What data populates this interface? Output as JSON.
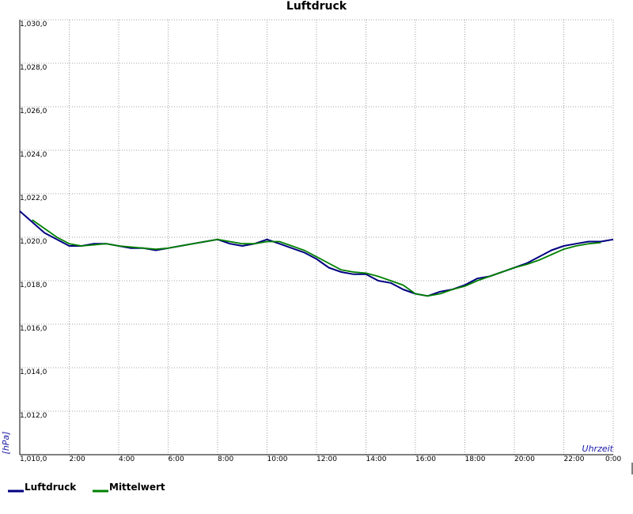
{
  "chart_data": {
    "type": "line",
    "title": "Luftdruck",
    "xlabel": "Uhrzeit",
    "ylabel": "[hPa]",
    "ylim": [
      1010.0,
      1030.0
    ],
    "xlim": [
      0,
      24
    ],
    "grid": true,
    "legend_position": "bottom-left",
    "x_tick_labels": [
      "2:00",
      "4:00",
      "6:00",
      "8:00",
      "10:00",
      "12:00",
      "14:00",
      "16:00",
      "18:00",
      "20:00",
      "22:00",
      "0:00"
    ],
    "y_tick_labels": [
      "1,010,0",
      "1,012,0",
      "1,014,0",
      "1,016,0",
      "1,018,0",
      "1,020,0",
      "1,022,0",
      "1,024,0",
      "1,026,0",
      "1,028,0",
      "1,030,0"
    ],
    "series": [
      {
        "name": "Luftdruck",
        "color": "#000080",
        "x": [
          0,
          0.5,
          1.0,
          1.5,
          2.0,
          2.5,
          3.0,
          3.5,
          4.0,
          4.5,
          5.0,
          5.5,
          6.0,
          6.5,
          7.0,
          7.5,
          8.0,
          8.5,
          9.0,
          9.5,
          10.0,
          10.5,
          11.0,
          11.5,
          12.0,
          12.5,
          13.0,
          13.5,
          14.0,
          14.5,
          15.0,
          15.5,
          16.0,
          16.5,
          17.0,
          17.5,
          18.0,
          18.5,
          19.0,
          19.5,
          20.0,
          20.5,
          21.0,
          21.5,
          22.0,
          22.5,
          23.0,
          23.5,
          24.0
        ],
        "y": [
          1021.2,
          1020.7,
          1020.2,
          1019.9,
          1019.6,
          1019.6,
          1019.7,
          1019.7,
          1019.6,
          1019.5,
          1019.5,
          1019.4,
          1019.5,
          1019.6,
          1019.7,
          1019.8,
          1019.9,
          1019.7,
          1019.6,
          1019.7,
          1019.9,
          1019.7,
          1019.5,
          1019.3,
          1019.0,
          1018.6,
          1018.4,
          1018.3,
          1018.3,
          1018.0,
          1017.9,
          1017.6,
          1017.4,
          1017.3,
          1017.5,
          1017.6,
          1017.8,
          1018.1,
          1018.2,
          1018.4,
          1018.6,
          1018.8,
          1019.1,
          1019.4,
          1019.6,
          1019.7,
          1019.8,
          1019.8,
          1019.9
        ]
      },
      {
        "name": "Mittelwert",
        "color": "#008000",
        "x": [
          0.5,
          1.0,
          1.5,
          2.0,
          2.5,
          3.0,
          3.5,
          4.0,
          4.5,
          5.0,
          5.5,
          6.0,
          6.5,
          7.0,
          7.5,
          8.0,
          8.5,
          9.0,
          9.5,
          10.0,
          10.5,
          11.0,
          11.5,
          12.0,
          12.5,
          13.0,
          13.5,
          14.0,
          14.5,
          15.0,
          15.5,
          16.0,
          16.5,
          17.0,
          17.5,
          18.0,
          18.5,
          19.0,
          19.5,
          20.0,
          20.5,
          21.0,
          21.5,
          22.0,
          22.5,
          23.0,
          23.5
        ],
        "y": [
          1020.8,
          1020.4,
          1020.0,
          1019.7,
          1019.6,
          1019.65,
          1019.7,
          1019.6,
          1019.55,
          1019.5,
          1019.45,
          1019.5,
          1019.6,
          1019.7,
          1019.8,
          1019.9,
          1019.8,
          1019.7,
          1019.7,
          1019.8,
          1019.8,
          1019.6,
          1019.4,
          1019.1,
          1018.8,
          1018.5,
          1018.4,
          1018.35,
          1018.2,
          1018.0,
          1017.8,
          1017.4,
          1017.3,
          1017.4,
          1017.6,
          1017.75,
          1018.0,
          1018.2,
          1018.4,
          1018.6,
          1018.75,
          1018.95,
          1019.2,
          1019.45,
          1019.6,
          1019.7,
          1019.75
        ]
      }
    ]
  }
}
